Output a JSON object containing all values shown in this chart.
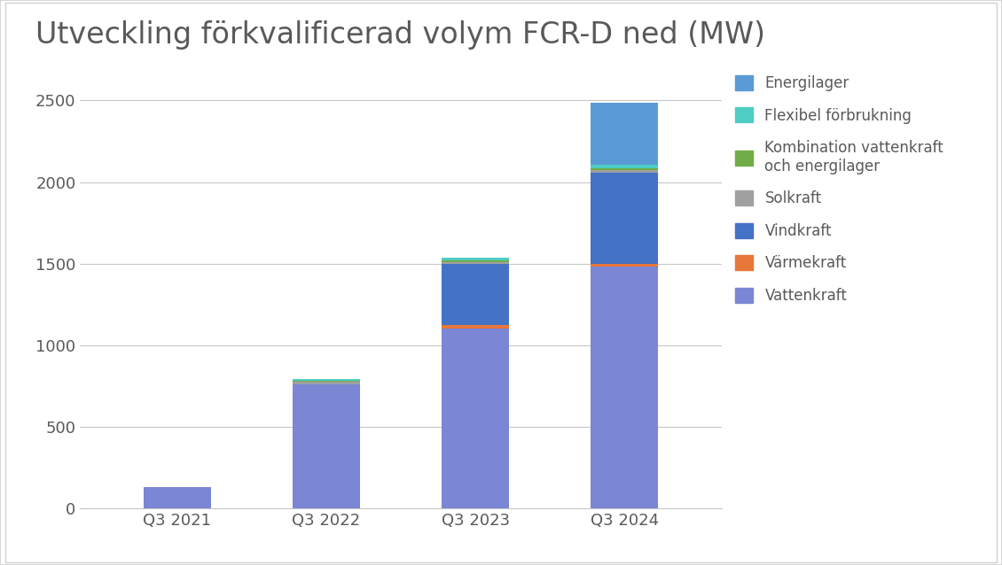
{
  "title": "Utveckling förkvalificerad volym FCR-D ned (MW)",
  "categories": [
    "Q3 2021",
    "Q3 2022",
    "Q3 2023",
    "Q3 2024"
  ],
  "series": {
    "Vattenkraft": [
      130,
      760,
      1105,
      1480
    ],
    "Värmekraft": [
      0,
      0,
      20,
      20
    ],
    "Vindkraft": [
      0,
      0,
      375,
      555
    ],
    "Solkraft": [
      0,
      17,
      12,
      17
    ],
    "Kombination vattenkraft\noch energilager": [
      0,
      5,
      10,
      15
    ],
    "Flexibel förbrukning": [
      0,
      10,
      12,
      18
    ],
    "Energilager": [
      0,
      0,
      0,
      380
    ]
  },
  "colors": {
    "Vattenkraft": "#7B86D4",
    "Värmekraft": "#E8773A",
    "Vindkraft": "#4472C4",
    "Solkraft": "#A0A0A0",
    "Kombination vattenkraft\noch energilager": "#70AD47",
    "Flexibel förbrukning": "#4ECDC4",
    "Energilager": "#5B9BD5"
  },
  "ylim": [
    0,
    2700
  ],
  "yticks": [
    0,
    500,
    1000,
    1500,
    2000,
    2500
  ],
  "title_fontsize": 24,
  "legend_fontsize": 12,
  "tick_fontsize": 13,
  "bar_width": 0.45,
  "background_color": "#FFFFFF",
  "grid_color": "#C8C8C8",
  "text_color": "#595959",
  "border_color": "#D0D0D0"
}
